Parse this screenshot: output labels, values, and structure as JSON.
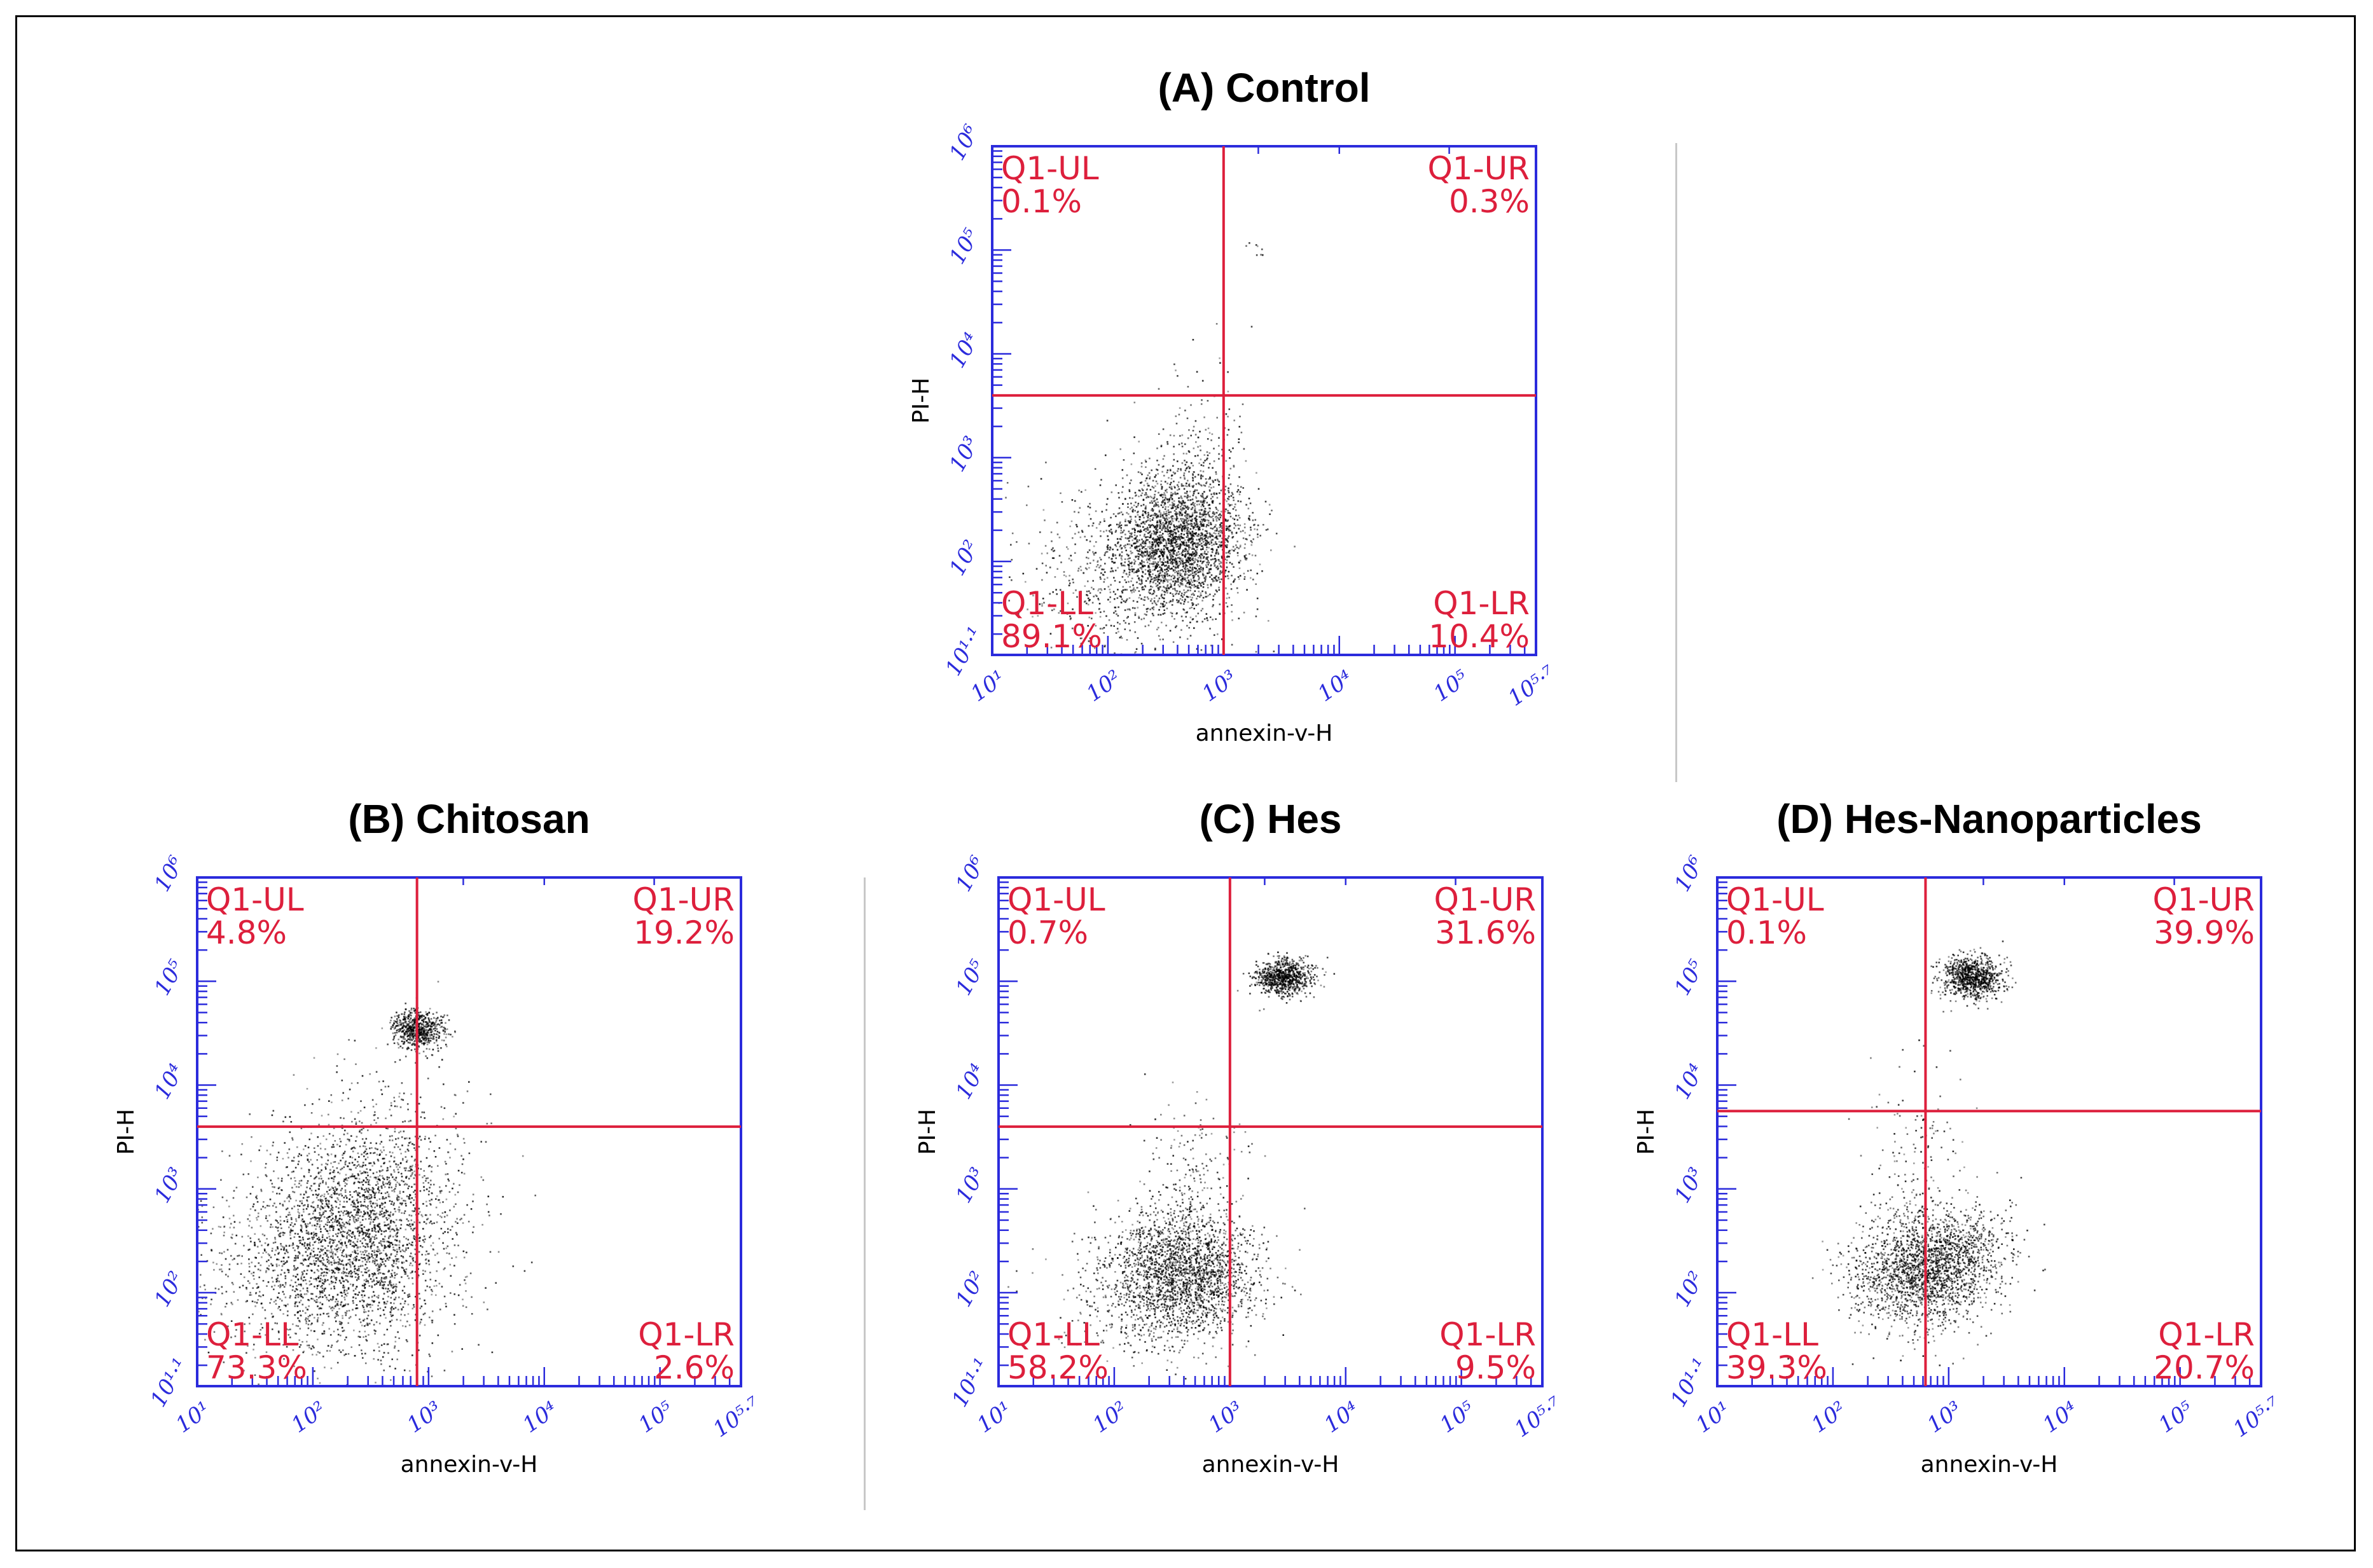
{
  "chart_data": [
    {
      "type": "scatter",
      "title": "(A) Control",
      "xlabel": "annexin-v-H",
      "ylabel": "PI-H",
      "xlim": [
        1.0,
        5.7
      ],
      "ylim": [
        1.1,
        6.0
      ],
      "x_gate": 3.0,
      "y_gate": 3.6,
      "x_ticks": [
        1,
        2,
        3,
        4,
        5,
        5.7
      ],
      "x_tick_labels": [
        "10¹",
        "10²",
        "10³",
        "10⁴",
        "10⁵",
        "10⁵·⁷"
      ],
      "y_ticks": [
        1.1,
        2,
        3,
        4,
        5,
        6
      ],
      "y_tick_labels": [
        "10¹·¹",
        "10²",
        "10³",
        "10⁴",
        "10⁵",
        "10⁶"
      ],
      "quadrants": {
        "UL": {
          "label": "Q1-UL",
          "percent": "0.1%"
        },
        "UR": {
          "label": "Q1-UR",
          "percent": "0.3%"
        },
        "LL": {
          "label": "Q1-LL",
          "percent": "89.1%"
        },
        "LR": {
          "label": "Q1-LR",
          "percent": "10.4%"
        }
      },
      "populations": [
        {
          "x": 2.6,
          "y": 2.2,
          "sx": 0.28,
          "sy": 0.34,
          "count": 2600
        },
        {
          "x": 2.0,
          "y": 1.9,
          "sx": 0.4,
          "sy": 0.4,
          "count": 500
        },
        {
          "x": 2.8,
          "y": 2.9,
          "sx": 0.2,
          "sy": 0.45,
          "count": 200
        },
        {
          "x": 3.3,
          "y": 5.0,
          "sx": 0.08,
          "sy": 0.12,
          "count": 8
        }
      ]
    },
    {
      "type": "scatter",
      "title": "(B) Chitosan",
      "xlabel": "annexin-v-H",
      "ylabel": "PI-H",
      "xlim": [
        1.0,
        5.7
      ],
      "ylim": [
        1.1,
        6.0
      ],
      "x_gate": 2.9,
      "y_gate": 3.6,
      "x_ticks": [
        1,
        2,
        3,
        4,
        5,
        5.7
      ],
      "x_tick_labels": [
        "10¹",
        "10²",
        "10³",
        "10⁴",
        "10⁵",
        "10⁵·⁷"
      ],
      "y_ticks": [
        1.1,
        2,
        3,
        4,
        5,
        6
      ],
      "y_tick_labels": [
        "10¹·¹",
        "10²",
        "10³",
        "10⁴",
        "10⁵",
        "10⁶"
      ],
      "quadrants": {
        "UL": {
          "label": "Q1-UL",
          "percent": "4.8%"
        },
        "UR": {
          "label": "Q1-UR",
          "percent": "19.2%"
        },
        "LL": {
          "label": "Q1-LL",
          "percent": "73.3%"
        },
        "LR": {
          "label": "Q1-LR",
          "percent": "2.6%"
        }
      },
      "populations": [
        {
          "x": 2.4,
          "y": 2.6,
          "sx": 0.4,
          "sy": 0.55,
          "count": 2600
        },
        {
          "x": 1.8,
          "y": 2.2,
          "sx": 0.5,
          "sy": 0.5,
          "count": 700
        },
        {
          "x": 2.9,
          "y": 4.55,
          "sx": 0.11,
          "sy": 0.09,
          "count": 650
        },
        {
          "x": 2.8,
          "y": 3.4,
          "sx": 0.3,
          "sy": 0.5,
          "count": 150
        }
      ]
    },
    {
      "type": "scatter",
      "title": "(C) Hes",
      "xlabel": "annexin-v-H",
      "ylabel": "PI-H",
      "xlim": [
        1.0,
        5.7
      ],
      "ylim": [
        1.1,
        6.0
      ],
      "x_gate": 3.0,
      "y_gate": 3.6,
      "x_ticks": [
        1,
        2,
        3,
        4,
        5,
        5.7
      ],
      "x_tick_labels": [
        "10¹",
        "10²",
        "10³",
        "10⁴",
        "10⁵",
        "10⁵·⁷"
      ],
      "y_ticks": [
        1.1,
        2,
        3,
        4,
        5,
        6
      ],
      "y_tick_labels": [
        "10¹·¹",
        "10²",
        "10³",
        "10⁴",
        "10⁵",
        "10⁶"
      ],
      "quadrants": {
        "UL": {
          "label": "Q1-UL",
          "percent": "0.7%"
        },
        "UR": {
          "label": "Q1-UR",
          "percent": "31.6%"
        },
        "LL": {
          "label": "Q1-LL",
          "percent": "58.2%"
        },
        "LR": {
          "label": "Q1-LR",
          "percent": "9.5%"
        }
      },
      "populations": [
        {
          "x": 2.6,
          "y": 2.2,
          "sx": 0.3,
          "sy": 0.3,
          "count": 2000
        },
        {
          "x": 2.2,
          "y": 2.0,
          "sx": 0.35,
          "sy": 0.35,
          "count": 400
        },
        {
          "x": 3.45,
          "y": 5.05,
          "sx": 0.12,
          "sy": 0.09,
          "count": 800
        },
        {
          "x": 2.7,
          "y": 3.0,
          "sx": 0.25,
          "sy": 0.45,
          "count": 200
        }
      ]
    },
    {
      "type": "scatter",
      "title": "(D) Hes-Nanoparticles",
      "xlabel": "annexin-v-H",
      "ylabel": "PI-H",
      "xlim": [
        1.0,
        5.7
      ],
      "ylim": [
        1.1,
        6.0
      ],
      "x_gate": 2.8,
      "y_gate": 3.75,
      "x_ticks": [
        1,
        2,
        3,
        4,
        5,
        5.7
      ],
      "x_tick_labels": [
        "10¹",
        "10²",
        "10³",
        "10⁴",
        "10⁵",
        "10⁵·⁷"
      ],
      "y_ticks": [
        1.1,
        2,
        3,
        4,
        5,
        6
      ],
      "y_tick_labels": [
        "10¹·¹",
        "10²",
        "10³",
        "10⁴",
        "10⁵",
        "10⁶"
      ],
      "quadrants": {
        "UL": {
          "label": "Q1-UL",
          "percent": "0.1%"
        },
        "UR": {
          "label": "Q1-UR",
          "percent": "39.9%"
        },
        "LL": {
          "label": "Q1-LL",
          "percent": "39.3%"
        },
        "LR": {
          "label": "Q1-LR",
          "percent": "20.7%"
        }
      },
      "populations": [
        {
          "x": 2.75,
          "y": 2.2,
          "sx": 0.3,
          "sy": 0.28,
          "count": 1700
        },
        {
          "x": 3.1,
          "y": 2.4,
          "sx": 0.25,
          "sy": 0.25,
          "count": 500
        },
        {
          "x": 3.2,
          "y": 5.05,
          "sx": 0.13,
          "sy": 0.1,
          "count": 900
        },
        {
          "x": 2.7,
          "y": 3.2,
          "sx": 0.2,
          "sy": 0.5,
          "count": 150
        }
      ]
    }
  ]
}
